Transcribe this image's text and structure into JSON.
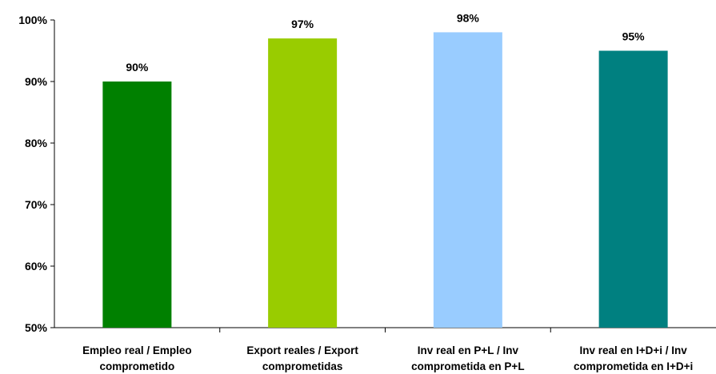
{
  "chart_data": {
    "type": "bar",
    "categories": [
      [
        "Empleo real / Empleo",
        "comprometido"
      ],
      [
        "Export reales / Export",
        "comprometidas"
      ],
      [
        "Inv real en P+L / Inv",
        "comprometida en P+L"
      ],
      [
        "Inv real en I+D+i / Inv",
        "comprometida en I+D+i"
      ]
    ],
    "values": [
      90,
      97,
      98,
      95
    ],
    "data_labels": [
      "90%",
      "97%",
      "98%",
      "95%"
    ],
    "bar_colors": [
      "#008000",
      "#99CC00",
      "#99CCFF",
      "#008080"
    ],
    "ylim": [
      50,
      100
    ],
    "yticks": [
      50,
      60,
      70,
      80,
      90,
      100
    ],
    "ytick_labels": [
      "50%",
      "60%",
      "70%",
      "80%",
      "90%",
      "100%"
    ],
    "grid": false,
    "legend": "none",
    "title": "",
    "xlabel": "",
    "ylabel": ""
  }
}
